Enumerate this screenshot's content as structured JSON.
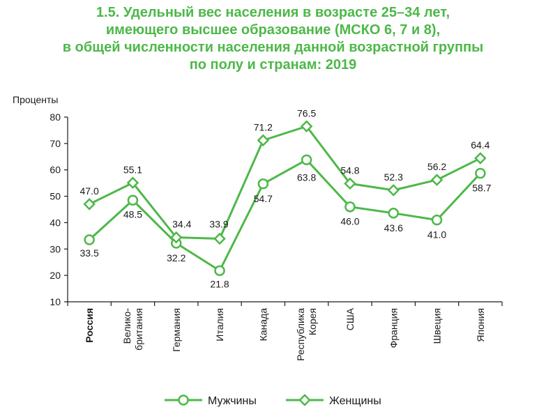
{
  "title_lines": [
    "1.5. Удельный вес населения в возрасте 25–34 лет,",
    "имеющего высшее образование (МСКО 6, 7 и 8),",
    "в общей численности населения данной возрастной группы",
    "по полу и странам: 2019"
  ],
  "colors": {
    "accent": "#4db848",
    "axis": "#1a1a1a"
  },
  "chart_data": {
    "type": "line",
    "title": "1.5. Удельный вес населения в возрасте 25–34 лет, имеющего высшее образование (МСКО 6, 7 и 8), в общей численности населения данной возрастной группы по полу и странам: 2019",
    "ylabel": "Проценты",
    "ylim": [
      10,
      80
    ],
    "yticks": [
      10,
      20,
      30,
      40,
      50,
      60,
      70,
      80
    ],
    "grid": false,
    "legend_position": "bottom",
    "categories": [
      [
        "Россия"
      ],
      [
        "Велико-",
        "британия"
      ],
      [
        "Германия"
      ],
      [
        "Италия"
      ],
      [
        "Канада"
      ],
      [
        "Республика",
        "Корея"
      ],
      [
        "США"
      ],
      [
        "Франция"
      ],
      [
        "Швеция"
      ],
      [
        "Япония"
      ]
    ],
    "bold_category_index": 0,
    "series": [
      {
        "name": "Мужчины",
        "marker": "circle",
        "values": [
          33.5,
          48.5,
          32.2,
          21.8,
          54.7,
          63.8,
          46.0,
          43.6,
          41.0,
          58.7
        ],
        "labels": [
          "33.5",
          "48.5",
          "32.2",
          "21.8",
          "54.7",
          "63.8",
          "46.0",
          "43.6",
          "41.0",
          "58.7"
        ]
      },
      {
        "name": "Женщины",
        "marker": "diamond",
        "values": [
          47.0,
          55.1,
          34.4,
          33.9,
          71.2,
          76.5,
          54.8,
          52.3,
          56.2,
          64.4
        ],
        "labels": [
          "47.0",
          "55.1",
          "34.4",
          "33.9",
          "71.2",
          "76.5",
          "54.8",
          "52.3",
          "56.2",
          "64.4"
        ]
      }
    ]
  }
}
